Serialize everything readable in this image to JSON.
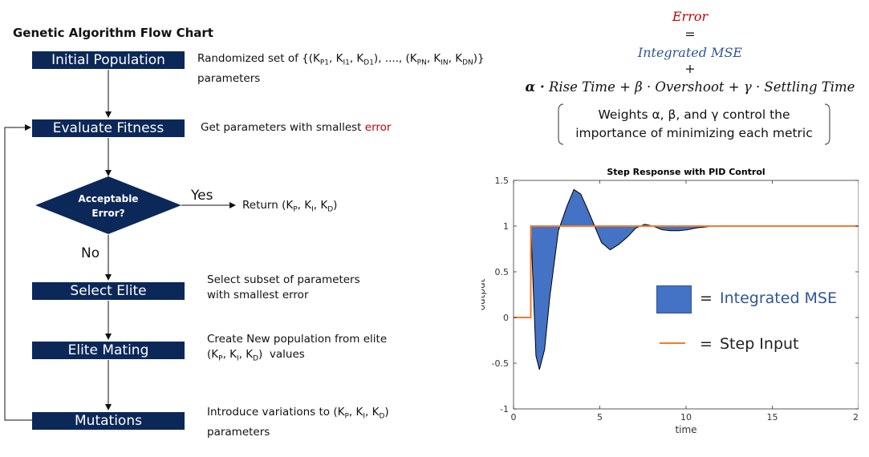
{
  "flowchart": {
    "title": "Genetic Algorithm Flow Chart",
    "steps": {
      "init": "Initial Population",
      "eval": "Evaluate Fitness",
      "select": "Select Elite",
      "mating": "Elite Mating",
      "mutation": "Mutations"
    },
    "decision": {
      "line1": "Acceptable",
      "line2": "Error?"
    },
    "yes_label": "Yes",
    "no_label": "No",
    "return_text": "Return (K",
    "descriptions": {
      "init_line1": "Randomized set of {(K",
      "init_line2": "parameters",
      "eval_prefix": "Get parameters with smallest ",
      "eval_error": "error",
      "select_line1": "Select subset of parameters",
      "select_line2": "with smallest error",
      "mating_line1": "Create New population from elite",
      "mating_line2_suffix": "values",
      "mutation_line1": "Introduce variations to (K",
      "mutation_line2": "parameters"
    }
  },
  "equation": {
    "error": "Error",
    "equals": "=",
    "mse": "Integrated MSE",
    "plus": "+",
    "terms": "Rise Time + β · Overshoot + γ · Settling Time",
    "alpha": "α ·",
    "note_line1": "Weights α, β, and γ control the",
    "note_line2": "importance of minimizing each metric",
    "error_color": "#c00000",
    "mse_color": "#2f5597"
  },
  "legend": {
    "mse": "Integrated MSE",
    "step": "Step Input",
    "eq1": "=",
    "eq2": "="
  },
  "chart_data": {
    "type": "area",
    "title": "Step Response with PID Control",
    "xlabel": "time",
    "ylabel": "output",
    "xlim": [
      0,
      20
    ],
    "ylim": [
      -1,
      1.5
    ],
    "xticks": [
      0,
      5,
      10,
      15,
      20
    ],
    "yticks": [
      -1,
      -0.5,
      0,
      0.5,
      1,
      1.5
    ],
    "series": [
      {
        "name": "Step Input",
        "color": "#ed7d31",
        "x": [
          0,
          1,
          1,
          20
        ],
        "y": [
          0,
          0,
          1,
          1
        ]
      },
      {
        "name": "output",
        "color": "#000000",
        "x": [
          1,
          1.3,
          1.5,
          1.8,
          2.1,
          2.6,
          3.1,
          3.5,
          3.9,
          4.3,
          4.7,
          5.1,
          5.6,
          6.1,
          6.6,
          7.1,
          7.6,
          8.1,
          8.6,
          9.1,
          9.6,
          10.1,
          10.6,
          11.1,
          11.6,
          12.6,
          14,
          20
        ],
        "y": [
          1,
          -0.42,
          -0.57,
          -0.35,
          0.22,
          0.95,
          1.22,
          1.4,
          1.35,
          1.18,
          1.0,
          0.82,
          0.74,
          0.8,
          0.88,
          0.98,
          1.02,
          1.0,
          0.96,
          0.95,
          0.95,
          0.96,
          0.98,
          0.99,
          1.0,
          1.0,
          1.0,
          1.0
        ]
      }
    ],
    "fill_color": "#4472c4",
    "grid": false
  }
}
